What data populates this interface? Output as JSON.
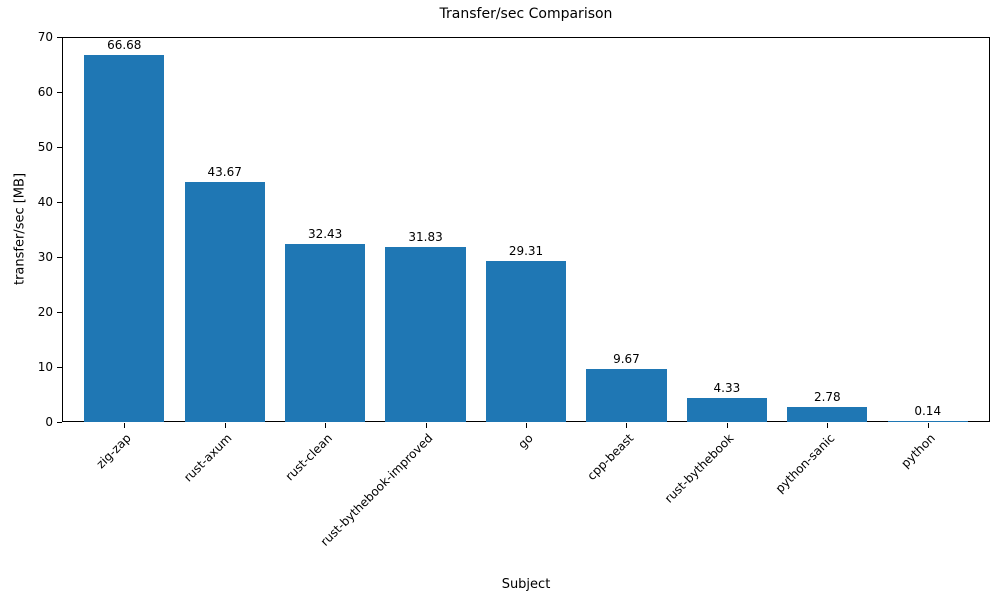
{
  "chart_data": {
    "type": "bar",
    "title": "Transfer/sec Comparison",
    "xlabel": "Subject",
    "ylabel": "transfer/sec [MB]",
    "categories": [
      "zig-zap",
      "rust-axum",
      "rust-clean",
      "rust-bythebook-improved",
      "go",
      "cpp-beast",
      "rust-bythebook",
      "python-sanic",
      "python"
    ],
    "values": [
      66.68,
      43.67,
      32.43,
      31.83,
      29.31,
      9.67,
      4.33,
      2.78,
      0.14
    ],
    "value_labels": [
      "66.68",
      "43.67",
      "32.43",
      "31.83",
      "29.31",
      "9.67",
      "4.33",
      "2.78",
      "0.14"
    ],
    "ylim": [
      0,
      70
    ],
    "yticks": [
      0,
      10,
      20,
      30,
      40,
      50,
      60,
      70
    ],
    "bar_color": "#1f77b4",
    "grid": false,
    "legend": "none"
  }
}
